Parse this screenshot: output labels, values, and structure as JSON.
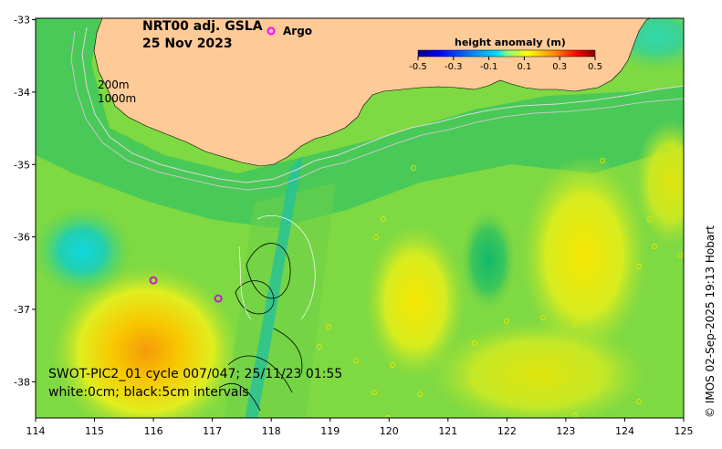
{
  "title_line1": "NRT00 adj. GSLA",
  "title_line2": "25 Nov 2023",
  "legend_argo": "Argo",
  "legend_argo_marker": "o",
  "depth_label_200": "200m",
  "depth_label_1000": "1000m",
  "colorbar": {
    "title": "height anomaly (m)",
    "ticks": [
      "-0.5",
      "-0.3",
      "-0.1",
      "0.1",
      "0.3",
      "0.5"
    ],
    "colors": [
      "#00007f",
      "#0000ff",
      "#007fff",
      "#00ffff",
      "#7fff7f",
      "#ffff00",
      "#ff7f00",
      "#ff0000",
      "#7f0000"
    ]
  },
  "swot_line1": "SWOT-PIC2_01 cycle 007/047; 25/11/23 01:55",
  "swot_line2": "white:0cm; black:5cm intervals",
  "credit": "© IMOS 02-Sep-2025 19:13 Hobart",
  "map": {
    "lon_ticks": [
      "114",
      "115",
      "116",
      "117",
      "118",
      "119",
      "120",
      "121",
      "122",
      "123",
      "124",
      "125"
    ],
    "lat_ticks": [
      "-33",
      "-34",
      "-35",
      "-36",
      "-37",
      "-38"
    ],
    "extent": {
      "lon_min": 114,
      "lon_max": 125,
      "lat_min": -38.5,
      "lat_max": -32.98
    },
    "land_color": "#fdca98",
    "argo_floats": [
      {
        "lon": 116.0,
        "lat": -36.6
      },
      {
        "lon": 117.1,
        "lat": -36.85
      }
    ]
  }
}
